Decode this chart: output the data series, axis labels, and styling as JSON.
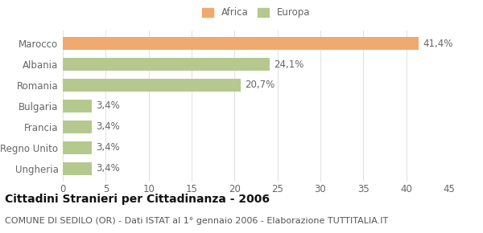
{
  "categories": [
    "Marocco",
    "Albania",
    "Romania",
    "Bulgaria",
    "Francia",
    "Regno Unito",
    "Ungheria"
  ],
  "values": [
    41.4,
    24.1,
    20.7,
    3.4,
    3.4,
    3.4,
    3.4
  ],
  "labels": [
    "41,4%",
    "24,1%",
    "20,7%",
    "3,4%",
    "3,4%",
    "3,4%",
    "3,4%"
  ],
  "colors": [
    "#f0a96e",
    "#b5c98e",
    "#b5c98e",
    "#b5c98e",
    "#b5c98e",
    "#b5c98e",
    "#b5c98e"
  ],
  "legend_labels": [
    "Africa",
    "Europa"
  ],
  "legend_colors": [
    "#f0a96e",
    "#b5c98e"
  ],
  "xlim": [
    0,
    45
  ],
  "xticks": [
    0,
    5,
    10,
    15,
    20,
    25,
    30,
    35,
    40,
    45
  ],
  "title": "Cittadini Stranieri per Cittadinanza - 2006",
  "subtitle": "COMUNE DI SEDILO (OR) - Dati ISTAT al 1° gennaio 2006 - Elaborazione TUTTITALIA.IT",
  "background_color": "#ffffff",
  "bar_height": 0.6,
  "label_fontsize": 8.5,
  "tick_fontsize": 8.5,
  "title_fontsize": 10,
  "subtitle_fontsize": 8.0
}
